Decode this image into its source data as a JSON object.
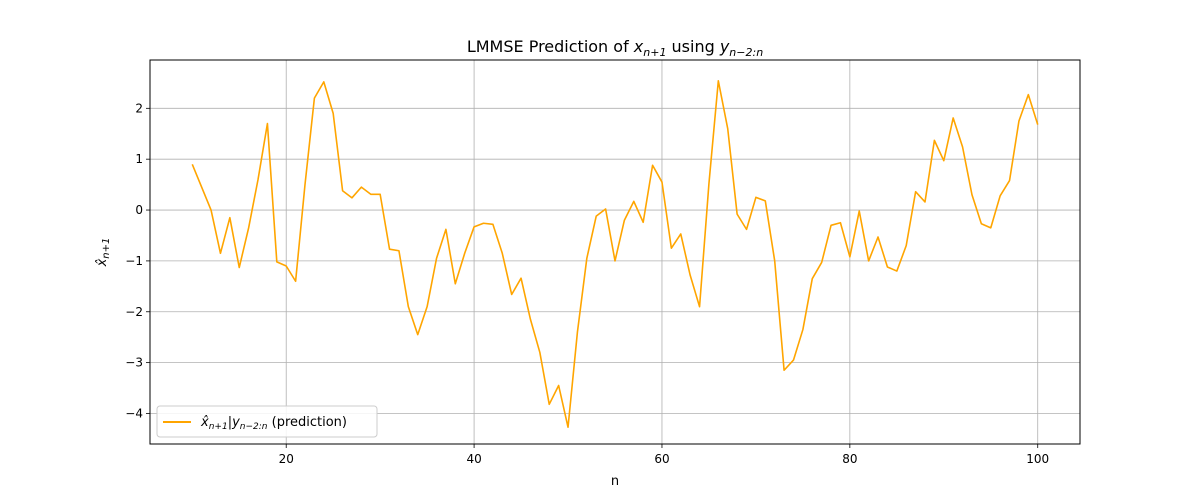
{
  "chart_data": {
    "type": "line",
    "title": {
      "prefix": "LMMSE Prediction of ",
      "x_var": "x",
      "x_sub": "n+1",
      "middle": " using ",
      "y_var": "y",
      "y_sub": "n−2:n"
    },
    "xlabel": "n",
    "ylabel": {
      "var": "x̂",
      "sub": "n+1"
    },
    "xlim": [
      5.5,
      104.5
    ],
    "ylim": [
      -4.6,
      2.95
    ],
    "xticks": [
      20,
      40,
      60,
      80,
      100
    ],
    "yticks": [
      -4,
      -3,
      -2,
      -1,
      0,
      1,
      2
    ],
    "ytick_labels": [
      "−4",
      "−3",
      "−2",
      "−1",
      "0",
      "1",
      "2"
    ],
    "grid": true,
    "legend_position": "lower-left",
    "series": [
      {
        "name": "x̂n+1|yn−2:n (prediction)",
        "legend": {
          "var": "x̂",
          "sub1": "n+1",
          "bar": "|",
          "var2": "y",
          "sub2": "n−2:n",
          "suffix": " (prediction)"
        },
        "color": "#ffa500",
        "x": [
          10,
          11,
          12,
          13,
          14,
          15,
          16,
          17,
          18,
          19,
          20,
          21,
          22,
          23,
          24,
          25,
          26,
          27,
          28,
          29,
          30,
          31,
          32,
          33,
          34,
          35,
          36,
          37,
          38,
          39,
          40,
          41,
          42,
          43,
          44,
          45,
          46,
          47,
          48,
          49,
          50,
          51,
          52,
          53,
          54,
          55,
          56,
          57,
          58,
          59,
          60,
          61,
          62,
          63,
          64,
          65,
          66,
          67,
          68,
          69,
          70,
          71,
          72,
          73,
          74,
          75,
          76,
          77,
          78,
          79,
          80,
          81,
          82,
          83,
          84,
          85,
          86,
          87,
          88,
          89,
          90,
          91,
          92,
          93,
          94,
          95,
          96,
          97,
          98,
          99,
          100
        ],
        "values": [
          0.9,
          0.45,
          0.0,
          -0.85,
          -0.15,
          -1.13,
          -0.35,
          0.6,
          1.7,
          -1.02,
          -1.1,
          -1.4,
          0.5,
          2.2,
          2.52,
          1.9,
          0.38,
          0.24,
          0.45,
          0.31,
          0.31,
          -0.77,
          -0.8,
          -1.9,
          -2.45,
          -1.9,
          -0.95,
          -0.38,
          -1.45,
          -0.85,
          -0.33,
          -0.26,
          -0.28,
          -0.85,
          -1.66,
          -1.34,
          -2.15,
          -2.8,
          -3.82,
          -3.45,
          -4.27,
          -2.4,
          -0.95,
          -0.12,
          0.02,
          -1.0,
          -0.2,
          0.17,
          -0.24,
          0.88,
          0.55,
          -0.75,
          -0.47,
          -1.28,
          -1.9,
          0.52,
          2.54,
          1.6,
          -0.08,
          -0.38,
          0.25,
          0.18,
          -1.0,
          -3.15,
          -2.95,
          -2.35,
          -1.35,
          -1.03,
          -0.3,
          -0.25,
          -0.92,
          -0.02,
          -1.0,
          -0.53,
          -1.12,
          -1.2,
          -0.7,
          0.36,
          0.16,
          1.37,
          0.97,
          1.81,
          1.24,
          0.3,
          -0.27,
          -0.35,
          0.28,
          0.58,
          1.75,
          2.27,
          1.68
        ]
      }
    ]
  }
}
